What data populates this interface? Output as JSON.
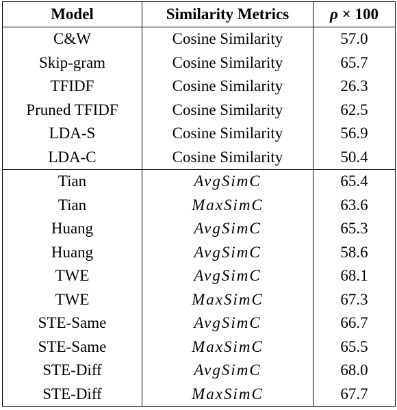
{
  "table": {
    "headers": {
      "model": "Model",
      "metric": "Similarity Metrics",
      "rho_symbol": "ρ",
      "rho_rest": " × 100"
    },
    "group1": [
      {
        "model": "C&W",
        "metric": "Cosine Similarity",
        "rho": "57.0"
      },
      {
        "model": "Skip-gram",
        "metric": "Cosine Similarity",
        "rho": "65.7"
      },
      {
        "model": "TFIDF",
        "metric": "Cosine Similarity",
        "rho": "26.3"
      },
      {
        "model": "Pruned TFIDF",
        "metric": "Cosine Similarity",
        "rho": "62.5"
      },
      {
        "model": "LDA-S",
        "metric": "Cosine Similarity",
        "rho": "56.9"
      },
      {
        "model": "LDA-C",
        "metric": "Cosine Similarity",
        "rho": "50.4"
      }
    ],
    "group2": [
      {
        "model": "Tian",
        "metric": "AvgSimC",
        "rho": "65.4"
      },
      {
        "model": "Tian",
        "metric": "MaxSimC",
        "rho": "63.6"
      },
      {
        "model": "Huang",
        "metric": "AvgSimC",
        "rho": "65.3"
      },
      {
        "model": "Huang",
        "metric": "AvgSimC",
        "rho": "58.6"
      },
      {
        "model": "TWE",
        "metric": "AvgSimC",
        "rho": "68.1"
      },
      {
        "model": "TWE",
        "metric": "MaxSimC",
        "rho": "67.3"
      },
      {
        "model": "STE-Same",
        "metric": "AvgSimC",
        "rho": "66.7"
      },
      {
        "model": "STE-Same",
        "metric": "MaxSimC",
        "rho": "65.5"
      },
      {
        "model": "STE-Diff",
        "metric": "AvgSimC",
        "rho": "68.0"
      },
      {
        "model": "STE-Diff",
        "metric": "MaxSimC",
        "rho": "67.7"
      }
    ]
  }
}
